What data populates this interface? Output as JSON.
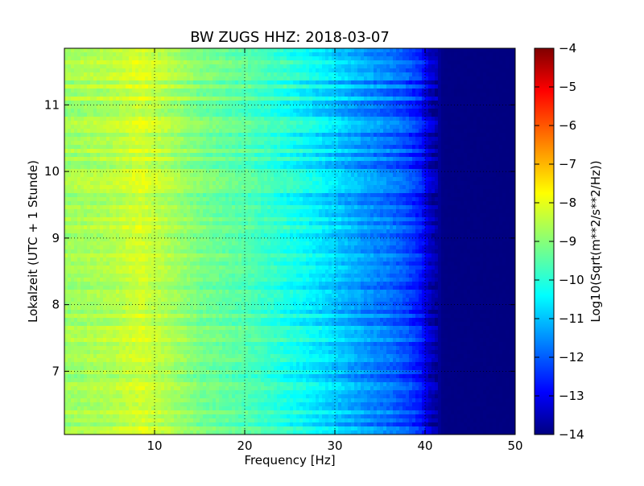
{
  "chart_data": {
    "type": "heatmap",
    "title": "BW ZUGS HHZ: 2018-03-07",
    "xlabel": "Frequency [Hz]",
    "ylabel": "Lokalzeit (UTC + 1 Stunde)",
    "xlim": [
      0,
      50
    ],
    "ylim": [
      11.85,
      6.05
    ],
    "xticks": [
      10,
      20,
      30,
      40,
      50
    ],
    "yticks": [
      7,
      8,
      9,
      10,
      11
    ],
    "grid": true,
    "colorbar": {
      "label": "Log10(Sqrt(m**2/s**2/Hz))",
      "range": [
        -14,
        -4
      ],
      "ticks": [
        -14,
        -13,
        -12,
        -11,
        -10,
        -9,
        -8,
        -7,
        -6,
        -5,
        -4
      ],
      "colormap": "jet"
    },
    "spectrum_profile": {
      "frequency_hz": [
        0,
        5,
        8.5,
        12,
        15,
        20,
        24,
        27,
        30,
        33,
        36,
        38,
        39.5,
        40.5,
        42,
        50
      ],
      "log10_amplitude": [
        -8.7,
        -8.5,
        -8.15,
        -8.6,
        -9.05,
        -9.4,
        -9.85,
        -10.25,
        -10.7,
        -11.2,
        -11.6,
        -12.0,
        -12.5,
        -13.3,
        -13.95,
        -14
      ]
    }
  },
  "colors": {
    "colormap_stops": [
      "#000080",
      "#0000ff",
      "#00ffff",
      "#ffff00",
      "#ff0000",
      "#800000"
    ],
    "axis": "#000000",
    "grid": "#000000"
  }
}
